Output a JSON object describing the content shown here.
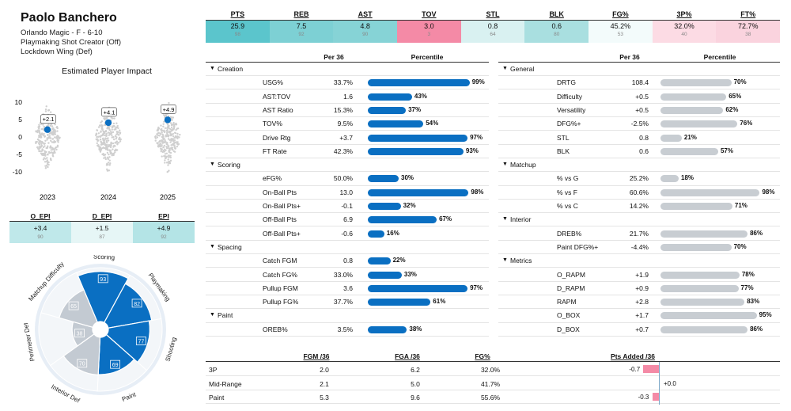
{
  "player": {
    "name": "Paolo Banchero",
    "line1": "Orlando Magic - F - 6-10",
    "line2": "Playmaking Shot Creator (Off)",
    "line3": "Lockdown Wing (Def)"
  },
  "top_stats": [
    {
      "label": "PTS",
      "value": "25.9",
      "pct": "98",
      "color": "#5bc5cc"
    },
    {
      "label": "REB",
      "value": "7.5",
      "pct": "92",
      "color": "#7dd0d4"
    },
    {
      "label": "AST",
      "value": "4.8",
      "pct": "90",
      "color": "#86d3d6"
    },
    {
      "label": "TOV",
      "value": "3.0",
      "pct": "3",
      "color": "#f48aa6"
    },
    {
      "label": "STL",
      "value": "0.8",
      "pct": "64",
      "color": "#d9f1f1"
    },
    {
      "label": "BLK",
      "value": "0.6",
      "pct": "80",
      "color": "#a9dfe0"
    },
    {
      "label": "FG%",
      "value": "45.2%",
      "pct": "53",
      "color": "#f3fbfb"
    },
    {
      "label": "3P%",
      "value": "32.0%",
      "pct": "40",
      "color": "#fcdbe4"
    },
    {
      "label": "FT%",
      "value": "72.7%",
      "pct": "38",
      "color": "#fad3de"
    }
  ],
  "epi_chart": {
    "title": "Estimated Player Impact",
    "y_ticks": [
      "10",
      "5",
      "0",
      "-5",
      "-10"
    ],
    "ylim": [
      -12,
      12
    ],
    "seasons": [
      {
        "year": "2023",
        "value": 2.1,
        "label": "+2.1"
      },
      {
        "year": "2024",
        "value": 4.1,
        "label": "+4.1"
      },
      {
        "year": "2025",
        "value": 4.9,
        "label": "+4.9"
      }
    ]
  },
  "epi_table": {
    "headers": [
      "O_EPI",
      "D_EPI",
      "EPI"
    ],
    "values": [
      "+3.4",
      "+1.5",
      "+4.9"
    ],
    "pcts": [
      "90",
      "87",
      "92"
    ],
    "colors": [
      "#bfe8ea",
      "#e6f6f6",
      "#b4e4e6"
    ]
  },
  "radar": {
    "categories": [
      {
        "name": "Scoring",
        "value": 93,
        "group": "off"
      },
      {
        "name": "Playmaking",
        "value": 82,
        "group": "off"
      },
      {
        "name": "Shooting",
        "value": 77,
        "group": "off"
      },
      {
        "name": "Paint",
        "value": 69,
        "group": "off"
      },
      {
        "name": "Interior Def",
        "value": 70,
        "group": "def"
      },
      {
        "name": "Perimeter Def",
        "value": 38,
        "group": "def"
      },
      {
        "name": "Matchup Difficulty",
        "value": 65,
        "group": "def"
      }
    ]
  },
  "left_table": {
    "col_per36": "Per 36",
    "col_pct": "Percentile",
    "sections": [
      {
        "title": "Creation",
        "rows": [
          {
            "name": "USG%",
            "val": "33.7%",
            "pct": 99
          },
          {
            "name": "AST:TOV",
            "val": "1.6",
            "pct": 43
          },
          {
            "name": "AST Ratio",
            "val": "15.3%",
            "pct": 37
          },
          {
            "name": "TOV%",
            "val": "9.5%",
            "pct": 54
          },
          {
            "name": "Drive Rtg",
            "val": "+3.7",
            "pct": 97
          },
          {
            "name": "FT Rate",
            "val": "42.3%",
            "pct": 93
          }
        ]
      },
      {
        "title": "Scoring",
        "rows": [
          {
            "name": "eFG%",
            "val": "50.0%",
            "pct": 30
          },
          {
            "name": "On-Ball Pts",
            "val": "13.0",
            "pct": 98
          },
          {
            "name": "On-Ball Pts+",
            "val": "-0.1",
            "pct": 32
          },
          {
            "name": "Off-Ball Pts",
            "val": "6.9",
            "pct": 67
          },
          {
            "name": "Off-Ball Pts+",
            "val": "-0.6",
            "pct": 16
          }
        ]
      },
      {
        "title": "Spacing",
        "rows": [
          {
            "name": "Catch FGM",
            "val": "0.8",
            "pct": 22
          },
          {
            "name": "Catch FG%",
            "val": "33.0%",
            "pct": 33
          },
          {
            "name": "Pullup FGM",
            "val": "3.6",
            "pct": 97
          },
          {
            "name": "Pullup FG%",
            "val": "37.7%",
            "pct": 61
          }
        ]
      },
      {
        "title": "Paint",
        "rows": [
          {
            "name": "OREB%",
            "val": "3.5%",
            "pct": 38
          }
        ]
      }
    ]
  },
  "right_table": {
    "col_per36": "Per 36",
    "col_pct": "Percentile",
    "sections": [
      {
        "title": "General",
        "rows": [
          {
            "name": "DRTG",
            "val": "108.4",
            "pct": 70
          },
          {
            "name": "Difficulty",
            "val": "+0.5",
            "pct": 65
          },
          {
            "name": "Versatility",
            "val": "+0.5",
            "pct": 62
          },
          {
            "name": "DFG%+",
            "val": "-2.5%",
            "pct": 76
          },
          {
            "name": "STL",
            "val": "0.8",
            "pct": 21
          },
          {
            "name": "BLK",
            "val": "0.6",
            "pct": 57
          }
        ]
      },
      {
        "title": "Matchup",
        "rows": [
          {
            "name": "% vs G",
            "val": "25.2%",
            "pct": 18
          },
          {
            "name": "% vs F",
            "val": "60.6%",
            "pct": 98
          },
          {
            "name": "% vs C",
            "val": "14.2%",
            "pct": 71
          }
        ]
      },
      {
        "title": "Interior",
        "rows": [
          {
            "name": "DREB%",
            "val": "21.7%",
            "pct": 86
          },
          {
            "name": "Paint DFG%+",
            "val": "-4.4%",
            "pct": 70
          }
        ]
      },
      {
        "title": "Metrics",
        "rows": [
          {
            "name": "O_RAPM",
            "val": "+1.9",
            "pct": 78
          },
          {
            "name": "D_RAPM",
            "val": "+0.9",
            "pct": 77
          },
          {
            "name": "RAPM",
            "val": "+2.8",
            "pct": 83
          },
          {
            "name": "O_BOX",
            "val": "+1.7",
            "pct": 95
          },
          {
            "name": "D_BOX",
            "val": "+0.7",
            "pct": 86
          }
        ]
      }
    ]
  },
  "shot_table": {
    "headers": [
      "FGM /36",
      "FGA /36",
      "FG%",
      "Pts Added /36"
    ],
    "rows": [
      {
        "zone": "3P",
        "fgm": "2.0",
        "fga": "6.2",
        "fg": "32.0%",
        "pts": -0.7,
        "pts_label": "-0.7"
      },
      {
        "zone": "Mid-Range",
        "fgm": "2.1",
        "fga": "5.0",
        "fg": "41.7%",
        "pts": 0.0,
        "pts_label": "+0.0"
      },
      {
        "zone": "Paint",
        "fgm": "5.3",
        "fga": "9.6",
        "fg": "55.6%",
        "pts": -0.3,
        "pts_label": "-0.3"
      }
    ]
  },
  "colors": {
    "offense_bar": "#0a6fc2",
    "defense_bar": "#c8cdd2",
    "negative": "#f48aa6"
  }
}
